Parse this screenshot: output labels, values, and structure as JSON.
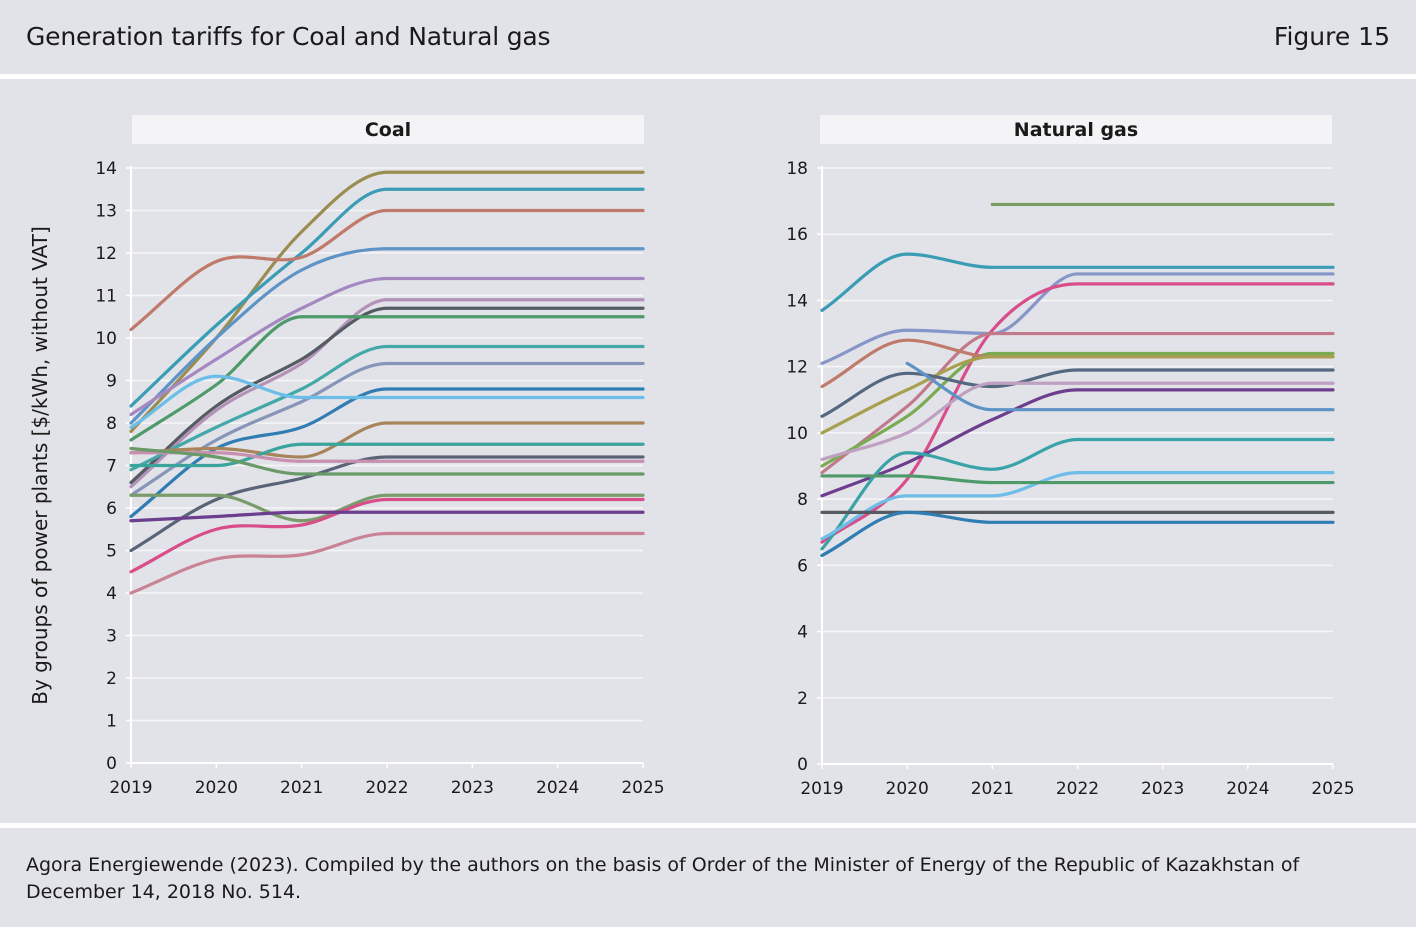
{
  "header": {
    "title": "Generation tariffs for Coal and Natural gas",
    "figure_label": "Figure 15"
  },
  "footer": {
    "source": "Agora Energiewende (2023). Compiled by the authors on the basis of Order of the Minister of Energy of the Republic of Kazakhstan of December 14, 2018 No. 514."
  },
  "chart_data": [
    {
      "type": "line",
      "title": "Coal",
      "ylabel": "By groups of power plants [$/kWh, without VAT]",
      "xlim": [
        2019,
        2025
      ],
      "ylim": [
        0,
        14
      ],
      "x_ticks": [
        2019,
        2020,
        2021,
        2022,
        2023,
        2024,
        2025
      ],
      "y_ticks": [
        0,
        1,
        2,
        3,
        4,
        5,
        6,
        7,
        8,
        9,
        10,
        11,
        12,
        13,
        14
      ],
      "grid": true,
      "series": [
        {
          "color": "#9a8d52",
          "x": [
            2019,
            2020,
            2021,
            2022,
            2023,
            2024,
            2025
          ],
          "y": [
            7.8,
            10.0,
            12.5,
            13.9,
            13.9,
            13.9,
            13.9
          ]
        },
        {
          "color": "#3a9cb5",
          "x": [
            2019,
            2020,
            2021,
            2022,
            2023,
            2024,
            2025
          ],
          "y": [
            8.4,
            10.3,
            12.0,
            13.5,
            13.5,
            13.5,
            13.5
          ]
        },
        {
          "color": "#c07a6a",
          "x": [
            2019,
            2020,
            2021,
            2022,
            2023,
            2024,
            2025
          ],
          "y": [
            10.2,
            11.8,
            11.9,
            13.0,
            13.0,
            13.0,
            13.0
          ]
        },
        {
          "color": "#5e93c6",
          "x": [
            2019,
            2020,
            2021,
            2022,
            2023,
            2024,
            2025
          ],
          "y": [
            8.0,
            10.0,
            11.6,
            12.1,
            12.1,
            12.1,
            12.1
          ]
        },
        {
          "color": "#a587c2",
          "x": [
            2019,
            2020,
            2021,
            2022,
            2023,
            2024,
            2025
          ],
          "y": [
            8.2,
            9.5,
            10.7,
            11.4,
            11.4,
            11.4,
            11.4
          ]
        },
        {
          "color": "#b492b8",
          "x": [
            2019,
            2020,
            2021,
            2022,
            2023,
            2024,
            2025
          ],
          "y": [
            6.5,
            8.3,
            9.4,
            10.9,
            10.9,
            10.9,
            10.9
          ]
        },
        {
          "color": "#555b63",
          "x": [
            2019,
            2020,
            2021,
            2022,
            2023,
            2024,
            2025
          ],
          "y": [
            6.6,
            8.4,
            9.5,
            10.7,
            10.7,
            10.7,
            10.7
          ]
        },
        {
          "color": "#4e9a6a",
          "x": [
            2019,
            2020,
            2021,
            2022,
            2023,
            2024,
            2025
          ],
          "y": [
            7.6,
            8.9,
            10.5,
            10.5,
            10.5,
            10.5,
            10.5
          ]
        },
        {
          "color": "#44a8a8",
          "x": [
            2019,
            2020,
            2021,
            2022,
            2023,
            2024,
            2025
          ],
          "y": [
            6.9,
            7.9,
            8.8,
            9.8,
            9.8,
            9.8,
            9.8
          ]
        },
        {
          "color": "#8796b8",
          "x": [
            2019,
            2020,
            2021,
            2022,
            2023,
            2024,
            2025
          ],
          "y": [
            6.3,
            7.6,
            8.5,
            9.4,
            9.4,
            9.4,
            9.4
          ]
        },
        {
          "color": "#2f7db3",
          "x": [
            2019,
            2020,
            2021,
            2022,
            2023,
            2024,
            2025
          ],
          "y": [
            5.8,
            7.4,
            7.9,
            8.8,
            8.8,
            8.8,
            8.8
          ]
        },
        {
          "color": "#6cbde8",
          "x": [
            2019,
            2020,
            2021,
            2022,
            2023,
            2024,
            2025
          ],
          "y": [
            7.9,
            9.1,
            8.6,
            8.6,
            8.6,
            8.6,
            8.6
          ]
        },
        {
          "color": "#a8845a",
          "x": [
            2019,
            2020,
            2021,
            2022,
            2023,
            2024,
            2025
          ],
          "y": [
            7.3,
            7.4,
            7.2,
            8.0,
            8.0,
            8.0,
            8.0
          ]
        },
        {
          "color": "#3aa39b",
          "x": [
            2019,
            2020,
            2021,
            2022,
            2023,
            2024,
            2025
          ],
          "y": [
            7.0,
            7.0,
            7.5,
            7.5,
            7.5,
            7.5,
            7.5
          ]
        },
        {
          "color": "#5a6478",
          "x": [
            2019,
            2020,
            2021,
            2022,
            2023,
            2024,
            2025
          ],
          "y": [
            5.0,
            6.2,
            6.7,
            7.2,
            7.2,
            7.2,
            7.2
          ]
        },
        {
          "color": "#c890b0",
          "x": [
            2019,
            2020,
            2021,
            2022,
            2023,
            2024,
            2025
          ],
          "y": [
            7.3,
            7.3,
            7.1,
            7.1,
            7.1,
            7.1,
            7.1
          ]
        },
        {
          "color": "#6a9a68",
          "x": [
            2019,
            2020,
            2021,
            2022,
            2023,
            2024,
            2025
          ],
          "y": [
            7.4,
            7.2,
            6.8,
            6.8,
            6.8,
            6.8,
            6.8
          ]
        },
        {
          "color": "#7a9c6a",
          "x": [
            2019,
            2020,
            2021,
            2022,
            2023,
            2024,
            2025
          ],
          "y": [
            6.3,
            6.3,
            5.7,
            6.3,
            6.3,
            6.3,
            6.3
          ]
        },
        {
          "color": "#d84e8a",
          "x": [
            2019,
            2020,
            2021,
            2022,
            2023,
            2024,
            2025
          ],
          "y": [
            4.5,
            5.5,
            5.6,
            6.2,
            6.2,
            6.2,
            6.2
          ]
        },
        {
          "color": "#6d3d8e",
          "x": [
            2019,
            2020,
            2021,
            2022,
            2023,
            2024,
            2025
          ],
          "y": [
            5.7,
            5.8,
            5.9,
            5.9,
            5.9,
            5.9,
            5.9
          ]
        },
        {
          "color": "#c88494",
          "x": [
            2019,
            2020,
            2021,
            2022,
            2023,
            2024,
            2025
          ],
          "y": [
            4.0,
            4.8,
            4.9,
            5.4,
            5.4,
            5.4,
            5.4
          ]
        }
      ]
    },
    {
      "type": "line",
      "title": "Natural gas",
      "xlim": [
        2019,
        2025
      ],
      "ylim": [
        0,
        18
      ],
      "x_ticks": [
        2019,
        2020,
        2021,
        2022,
        2023,
        2024,
        2025
      ],
      "y_ticks": [
        0,
        2,
        4,
        6,
        8,
        10,
        12,
        14,
        16,
        18
      ],
      "grid": true,
      "series": [
        {
          "color": "#7a9c62",
          "x": [
            2021,
            2022,
            2023,
            2024,
            2025
          ],
          "y": [
            16.9,
            16.9,
            16.9,
            16.9,
            16.9
          ]
        },
        {
          "color": "#3a9cb5",
          "x": [
            2019,
            2020,
            2021,
            2022,
            2023,
            2024,
            2025
          ],
          "y": [
            13.7,
            15.4,
            15.0,
            15.0,
            15.0,
            15.0,
            15.0
          ]
        },
        {
          "color": "#8796c8",
          "x": [
            2019,
            2020,
            2021,
            2022,
            2023,
            2024,
            2025
          ],
          "y": [
            12.1,
            13.1,
            13.0,
            14.8,
            14.8,
            14.8,
            14.8
          ]
        },
        {
          "color": "#d84e8a",
          "x": [
            2019,
            2020,
            2021,
            2022,
            2023,
            2024,
            2025
          ],
          "y": [
            6.7,
            8.6,
            13.1,
            14.5,
            14.5,
            14.5,
            14.5
          ]
        },
        {
          "color": "#c07a8a",
          "x": [
            2019,
            2020,
            2021,
            2022,
            2023,
            2024,
            2025
          ],
          "y": [
            8.8,
            10.8,
            13.0,
            13.0,
            13.0,
            13.0,
            13.0
          ]
        },
        {
          "color": "#7aaa52",
          "x": [
            2019,
            2020,
            2021,
            2022,
            2023,
            2024,
            2025
          ],
          "y": [
            9.0,
            10.5,
            12.4,
            12.4,
            12.4,
            12.4,
            12.4
          ]
        },
        {
          "color": "#c07a6a",
          "x": [
            2019,
            2020,
            2021,
            2022,
            2023,
            2024,
            2025
          ],
          "y": [
            11.4,
            12.8,
            12.3,
            12.3,
            12.3,
            12.3,
            12.3
          ]
        },
        {
          "color": "#a8a050",
          "x": [
            2019,
            2020,
            2021,
            2022,
            2023,
            2024,
            2025
          ],
          "y": [
            10.0,
            11.3,
            12.3,
            12.3,
            12.3,
            12.3,
            12.3
          ]
        },
        {
          "color": "#556882",
          "x": [
            2019,
            2020,
            2021,
            2022,
            2023,
            2024,
            2025
          ],
          "y": [
            10.5,
            11.8,
            11.4,
            11.9,
            11.9,
            11.9,
            11.9
          ]
        },
        {
          "color": "#c0a0c0",
          "x": [
            2019,
            2020,
            2021,
            2022,
            2023,
            2024,
            2025
          ],
          "y": [
            9.2,
            10.0,
            11.5,
            11.5,
            11.5,
            11.5,
            11.5
          ]
        },
        {
          "color": "#6d3d8e",
          "x": [
            2019,
            2020,
            2021,
            2022,
            2023,
            2024,
            2025
          ],
          "y": [
            8.1,
            9.1,
            10.4,
            11.3,
            11.3,
            11.3,
            11.3
          ]
        },
        {
          "color": "#5e93c6",
          "x": [
            2020,
            2021,
            2022,
            2023,
            2024,
            2025
          ],
          "y": [
            12.1,
            10.7,
            10.7,
            10.7,
            10.7,
            10.7
          ]
        },
        {
          "color": "#3aa3a8",
          "x": [
            2019,
            2020,
            2021,
            2022,
            2023,
            2024,
            2025
          ],
          "y": [
            6.5,
            9.4,
            8.9,
            9.8,
            9.8,
            9.8,
            9.8
          ]
        },
        {
          "color": "#6cbde8",
          "x": [
            2019,
            2020,
            2021,
            2022,
            2023,
            2024,
            2025
          ],
          "y": [
            6.8,
            8.1,
            8.1,
            8.8,
            8.8,
            8.8,
            8.8
          ]
        },
        {
          "color": "#4e9a6a",
          "x": [
            2019,
            2020,
            2021,
            2022,
            2023,
            2024,
            2025
          ],
          "y": [
            8.7,
            8.7,
            8.5,
            8.5,
            8.5,
            8.5,
            8.5
          ]
        },
        {
          "color": "#555b63",
          "x": [
            2019,
            2020,
            2021,
            2022,
            2023,
            2024,
            2025
          ],
          "y": [
            7.6,
            7.6,
            7.6,
            7.6,
            7.6,
            7.6,
            7.6
          ]
        },
        {
          "color": "#2f7db3",
          "x": [
            2019,
            2020,
            2021,
            2022,
            2023,
            2024,
            2025
          ],
          "y": [
            6.3,
            7.6,
            7.3,
            7.3,
            7.3,
            7.3,
            7.3
          ]
        }
      ]
    }
  ]
}
